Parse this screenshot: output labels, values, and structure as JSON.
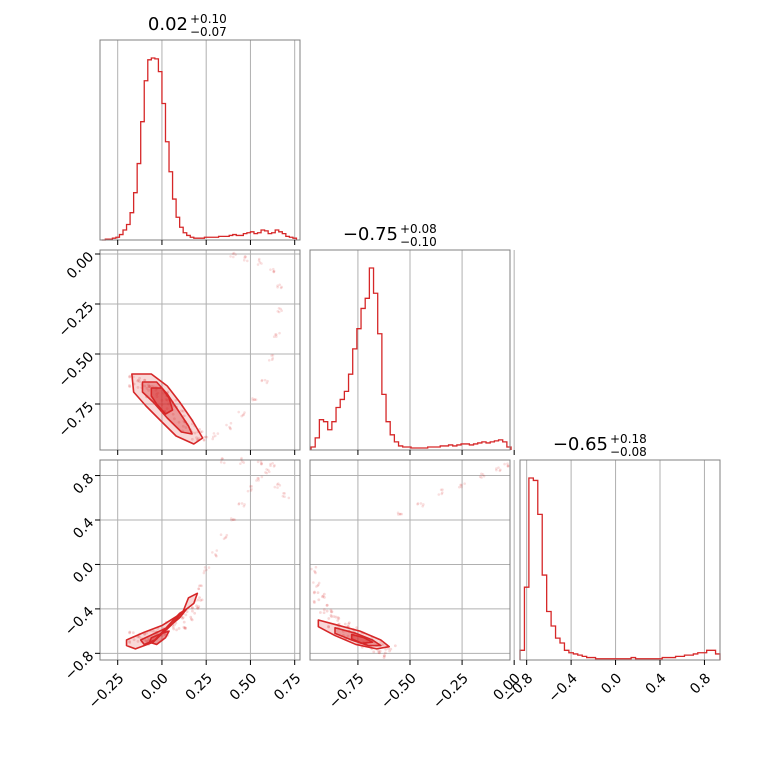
{
  "figure": {
    "type": "corner-plot",
    "accent_color": "#d62728",
    "grid": true
  },
  "chart_data": [
    {
      "type": "histogram",
      "panel": "diag-0",
      "title": "0.02",
      "title_sup": "+0.10",
      "title_sub": "−0.07",
      "xlim": [
        -0.35,
        0.78
      ],
      "x_ticks": [
        -0.25,
        0.0,
        0.25,
        0.5,
        0.75
      ],
      "x_tick_labels": [
        "−0.25",
        "0.00",
        "0.25",
        "0.50",
        "0.75"
      ],
      "bins_x": [
        -0.34,
        -0.32,
        -0.3,
        -0.28,
        -0.26,
        -0.24,
        -0.22,
        -0.2,
        -0.18,
        -0.16,
        -0.14,
        -0.12,
        -0.1,
        -0.08,
        -0.06,
        -0.04,
        -0.02,
        0.0,
        0.02,
        0.04,
        0.06,
        0.08,
        0.1,
        0.12,
        0.14,
        0.16,
        0.18,
        0.2,
        0.22,
        0.24,
        0.26,
        0.28,
        0.3,
        0.32,
        0.34,
        0.36,
        0.38,
        0.4,
        0.42,
        0.44,
        0.46,
        0.48,
        0.5,
        0.52,
        0.54,
        0.56,
        0.58,
        0.6,
        0.62,
        0.64,
        0.66,
        0.68,
        0.7,
        0.72,
        0.74
      ],
      "counts": [
        0,
        1,
        1,
        2,
        3,
        6,
        11,
        17,
        30,
        52,
        84,
        130,
        175,
        198,
        200,
        199,
        185,
        150,
        108,
        75,
        45,
        25,
        14,
        8,
        5,
        3,
        2,
        2,
        2,
        3,
        3,
        3,
        3,
        4,
        4,
        4,
        5,
        6,
        5,
        5,
        7,
        8,
        9,
        7,
        8,
        11,
        10,
        7,
        8,
        11,
        9,
        7,
        4,
        3,
        2
      ]
    },
    {
      "type": "histogram",
      "panel": "diag-1",
      "title": "−0.75",
      "title_sup": "+0.08",
      "title_sub": "−0.10",
      "xlim": [
        -0.98,
        -0.02
      ],
      "x_ticks": [
        -0.75,
        -0.5,
        -0.25,
        0.0
      ],
      "x_tick_labels": [
        "−0.75",
        "−0.50",
        "−0.25",
        "0.00"
      ],
      "bins_x": [
        -0.975,
        -0.955,
        -0.935,
        -0.915,
        -0.895,
        -0.875,
        -0.855,
        -0.835,
        -0.815,
        -0.795,
        -0.775,
        -0.755,
        -0.735,
        -0.715,
        -0.695,
        -0.675,
        -0.655,
        -0.635,
        -0.615,
        -0.595,
        -0.575,
        -0.555,
        -0.535,
        -0.515,
        -0.495,
        -0.475,
        -0.455,
        -0.435,
        -0.415,
        -0.395,
        -0.375,
        -0.355,
        -0.335,
        -0.315,
        -0.295,
        -0.275,
        -0.255,
        -0.235,
        -0.215,
        -0.195,
        -0.175,
        -0.155,
        -0.135,
        -0.115,
        -0.095,
        -0.075,
        -0.055,
        -0.035
      ],
      "counts": [
        3,
        12,
        30,
        28,
        20,
        28,
        42,
        50,
        58,
        75,
        100,
        120,
        140,
        150,
        180,
        155,
        115,
        55,
        28,
        15,
        8,
        4,
        3,
        3,
        2,
        2,
        2,
        2,
        3,
        3,
        3,
        4,
        4,
        5,
        4,
        5,
        6,
        6,
        5,
        6,
        7,
        8,
        7,
        8,
        9,
        10,
        8,
        3
      ]
    },
    {
      "type": "histogram",
      "panel": "diag-2",
      "title": "−0.65",
      "title_sup": "+0.18",
      "title_sub": "−0.08",
      "xlim": [
        -0.86,
        0.94
      ],
      "x_ticks": [
        -0.8,
        -0.4,
        0.0,
        0.4,
        0.8
      ],
      "x_tick_labels": [
        "−0.8",
        "−0.4",
        "0.0",
        "0.4",
        "0.8"
      ],
      "bins_x": [
        -0.86,
        -0.82,
        -0.78,
        -0.74,
        -0.7,
        -0.66,
        -0.62,
        -0.58,
        -0.54,
        -0.5,
        -0.46,
        -0.42,
        -0.38,
        -0.34,
        -0.3,
        -0.26,
        -0.22,
        -0.18,
        -0.14,
        -0.1,
        -0.06,
        -0.02,
        0.02,
        0.06,
        0.1,
        0.14,
        0.18,
        0.22,
        0.26,
        0.3,
        0.34,
        0.38,
        0.42,
        0.46,
        0.5,
        0.54,
        0.58,
        0.62,
        0.66,
        0.7,
        0.74,
        0.78,
        0.82,
        0.86,
        0.9
      ],
      "counts": [
        8,
        60,
        150,
        148,
        120,
        70,
        40,
        28,
        18,
        14,
        8,
        6,
        5,
        4,
        3,
        2,
        2,
        1,
        1,
        1,
        1,
        1,
        1,
        1,
        1,
        2,
        1,
        1,
        1,
        1,
        1,
        1,
        2,
        2,
        2,
        3,
        3,
        4,
        4,
        5,
        6,
        6,
        8,
        8,
        5
      ]
    },
    {
      "type": "scatter-contour",
      "panel": "lower-1-0",
      "xlim": [
        -0.35,
        0.78
      ],
      "ylim": [
        -0.98,
        0.02
      ],
      "x_ticks": [
        -0.25,
        0.0,
        0.25,
        0.5,
        0.75
      ],
      "y_ticks": [
        0.0,
        -0.25,
        -0.5,
        -0.75
      ],
      "y_tick_labels": [
        "0.00",
        "−0.25",
        "−0.50",
        "−0.75"
      ],
      "cluster": [
        [
          -0.16,
          -0.64
        ],
        [
          -0.1,
          -0.66
        ],
        [
          -0.05,
          -0.69
        ],
        [
          0.0,
          -0.72
        ],
        [
          0.05,
          -0.76
        ],
        [
          0.1,
          -0.81
        ],
        [
          0.15,
          -0.86
        ],
        [
          0.2,
          -0.9
        ]
      ],
      "tail": [
        [
          0.25,
          -0.92
        ],
        [
          0.3,
          -0.91
        ],
        [
          0.38,
          -0.86
        ],
        [
          0.45,
          -0.8
        ],
        [
          0.52,
          -0.73
        ],
        [
          0.58,
          -0.63
        ],
        [
          0.62,
          -0.52
        ],
        [
          0.65,
          -0.4
        ],
        [
          0.67,
          -0.28
        ],
        [
          0.66,
          -0.16
        ],
        [
          0.62,
          -0.08
        ],
        [
          0.55,
          -0.04
        ],
        [
          0.48,
          -0.02
        ],
        [
          0.4,
          -0.01
        ]
      ],
      "contours": [
        [
          [
            -0.17,
            -0.6
          ],
          [
            -0.06,
            -0.6
          ],
          [
            0.03,
            -0.66
          ],
          [
            0.1,
            -0.74
          ],
          [
            0.17,
            -0.83
          ],
          [
            0.23,
            -0.92
          ],
          [
            0.18,
            -0.95
          ],
          [
            0.08,
            -0.91
          ],
          [
            0.0,
            -0.84
          ],
          [
            -0.09,
            -0.76
          ],
          [
            -0.16,
            -0.69
          ]
        ],
        [
          [
            -0.11,
            -0.64
          ],
          [
            -0.03,
            -0.64
          ],
          [
            0.03,
            -0.7
          ],
          [
            0.09,
            -0.78
          ],
          [
            0.15,
            -0.86
          ],
          [
            0.17,
            -0.9
          ],
          [
            0.11,
            -0.89
          ],
          [
            0.03,
            -0.82
          ],
          [
            -0.05,
            -0.74
          ],
          [
            -0.11,
            -0.69
          ]
        ],
        [
          [
            -0.06,
            -0.67
          ],
          [
            0.0,
            -0.67
          ],
          [
            0.04,
            -0.72
          ],
          [
            0.06,
            -0.78
          ],
          [
            0.02,
            -0.8
          ],
          [
            -0.03,
            -0.75
          ],
          [
            -0.06,
            -0.71
          ]
        ]
      ]
    },
    {
      "type": "scatter-contour",
      "panel": "lower-2-0",
      "xlim": [
        -0.35,
        0.78
      ],
      "ylim": [
        -0.86,
        0.94
      ],
      "x_ticks": [
        -0.25,
        0.0,
        0.25,
        0.5,
        0.75
      ],
      "x_tick_labels": [
        "−0.25",
        "0.00",
        "0.25",
        "0.50",
        "0.75"
      ],
      "y_ticks": [
        0.8,
        0.4,
        0.0,
        -0.4,
        -0.8
      ],
      "y_tick_labels": [
        "0.8",
        "0.4",
        "0.0",
        "−0.4",
        "−0.8"
      ],
      "cluster": [
        [
          -0.16,
          -0.66
        ],
        [
          -0.1,
          -0.68
        ],
        [
          -0.05,
          -0.65
        ],
        [
          0.0,
          -0.62
        ],
        [
          0.05,
          -0.58
        ],
        [
          0.1,
          -0.52
        ],
        [
          0.15,
          -0.44
        ],
        [
          0.2,
          -0.34
        ]
      ],
      "tail": [
        [
          0.22,
          -0.2
        ],
        [
          0.25,
          -0.05
        ],
        [
          0.3,
          0.1
        ],
        [
          0.35,
          0.25
        ],
        [
          0.4,
          0.4
        ],
        [
          0.45,
          0.55
        ],
        [
          0.5,
          0.68
        ],
        [
          0.55,
          0.78
        ],
        [
          0.6,
          0.84
        ],
        [
          0.62,
          0.9
        ],
        [
          0.55,
          0.92
        ],
        [
          0.45,
          0.93
        ],
        [
          0.35,
          0.94
        ],
        [
          0.65,
          0.7
        ],
        [
          0.7,
          0.62
        ]
      ],
      "contours": [
        [
          [
            -0.2,
            -0.68
          ],
          [
            -0.1,
            -0.61
          ],
          [
            0.0,
            -0.55
          ],
          [
            0.1,
            -0.45
          ],
          [
            0.18,
            -0.35
          ],
          [
            0.2,
            -0.26
          ],
          [
            0.15,
            -0.3
          ],
          [
            0.12,
            -0.42
          ],
          [
            0.05,
            -0.55
          ],
          [
            -0.05,
            -0.7
          ],
          [
            -0.15,
            -0.76
          ],
          [
            -0.2,
            -0.73
          ]
        ],
        [
          [
            -0.12,
            -0.68
          ],
          [
            -0.04,
            -0.62
          ],
          [
            0.04,
            -0.56
          ],
          [
            0.1,
            -0.48
          ],
          [
            0.14,
            -0.4
          ],
          [
            0.1,
            -0.44
          ],
          [
            0.03,
            -0.56
          ],
          [
            -0.04,
            -0.68
          ],
          [
            -0.1,
            -0.72
          ]
        ],
        [
          [
            -0.06,
            -0.66
          ],
          [
            0.0,
            -0.62
          ],
          [
            0.04,
            -0.6
          ],
          [
            0.02,
            -0.66
          ],
          [
            -0.03,
            -0.72
          ],
          [
            -0.07,
            -0.7
          ]
        ]
      ]
    },
    {
      "type": "scatter-contour",
      "panel": "lower-2-1",
      "xlim": [
        -0.98,
        -0.02
      ],
      "ylim": [
        -0.86,
        0.94
      ],
      "x_ticks": [
        -0.75,
        -0.5,
        -0.25,
        0.0
      ],
      "x_tick_labels": [
        "−0.75",
        "−0.50",
        "−0.25",
        "0.00"
      ],
      "y_ticks": [
        0.8,
        0.4,
        0.0,
        -0.4,
        -0.8
      ],
      "cluster": [
        [
          -0.94,
          -0.3
        ],
        [
          -0.9,
          -0.42
        ],
        [
          -0.86,
          -0.52
        ],
        [
          -0.82,
          -0.58
        ],
        [
          -0.78,
          -0.62
        ],
        [
          -0.74,
          -0.66
        ],
        [
          -0.7,
          -0.7
        ],
        [
          -0.65,
          -0.74
        ],
        [
          -0.6,
          -0.78
        ]
      ],
      "tail": [
        [
          -0.96,
          -0.05
        ],
        [
          -0.95,
          -0.18
        ],
        [
          -0.55,
          0.45
        ],
        [
          -0.45,
          0.55
        ],
        [
          -0.35,
          0.65
        ],
        [
          -0.25,
          0.72
        ],
        [
          -0.15,
          0.8
        ],
        [
          -0.08,
          0.86
        ],
        [
          -0.04,
          0.9
        ]
      ],
      "contours": [
        [
          [
            -0.94,
            -0.5
          ],
          [
            -0.84,
            -0.55
          ],
          [
            -0.74,
            -0.6
          ],
          [
            -0.64,
            -0.68
          ],
          [
            -0.6,
            -0.74
          ],
          [
            -0.66,
            -0.76
          ],
          [
            -0.76,
            -0.72
          ],
          [
            -0.86,
            -0.64
          ],
          [
            -0.94,
            -0.56
          ]
        ],
        [
          [
            -0.86,
            -0.57
          ],
          [
            -0.76,
            -0.62
          ],
          [
            -0.68,
            -0.68
          ],
          [
            -0.64,
            -0.73
          ],
          [
            -0.7,
            -0.73
          ],
          [
            -0.78,
            -0.68
          ],
          [
            -0.86,
            -0.62
          ]
        ],
        [
          [
            -0.78,
            -0.63
          ],
          [
            -0.72,
            -0.66
          ],
          [
            -0.68,
            -0.7
          ],
          [
            -0.73,
            -0.71
          ],
          [
            -0.78,
            -0.67
          ]
        ]
      ]
    }
  ]
}
